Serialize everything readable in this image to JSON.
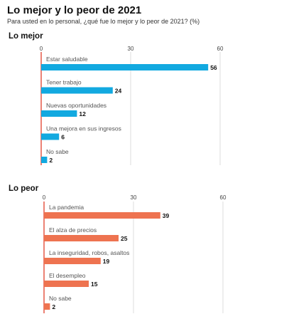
{
  "header": {
    "title": "Lo mejor y lo peor de 2021",
    "subtitle": "Para usted en lo personal, ¿qué fue lo mejor y lo peor de 2021? (%)"
  },
  "colors": {
    "best": "#12a9e0",
    "worst": "#ee7350",
    "axis": "#e44c3a",
    "grid": "#d4d4d4"
  },
  "chart_data": [
    {
      "type": "bar",
      "orientation": "horizontal",
      "title": "Lo mejor",
      "xlim": [
        0,
        60
      ],
      "ticks": [
        "0",
        "30",
        "60"
      ],
      "grid": true,
      "categories": [
        "Estar saludable",
        "Tener trabajo",
        "Nuevas oportunidades",
        "Una mejora en sus ingresos",
        "No sabe"
      ],
      "values": [
        56,
        24,
        12,
        6,
        2
      ],
      "value_labels": [
        "56",
        "24",
        "12",
        "6",
        "2"
      ]
    },
    {
      "type": "bar",
      "orientation": "horizontal",
      "title": "Lo peor",
      "xlim": [
        0,
        60
      ],
      "ticks": [
        "0",
        "30",
        "60"
      ],
      "grid": true,
      "categories": [
        "La pandemia",
        "El alza de precios",
        "La inseguridad, robos, asaltos",
        "El desempleo",
        "No sabe"
      ],
      "values": [
        39,
        25,
        19,
        15,
        2
      ],
      "value_labels": [
        "39",
        "25",
        "19",
        "15",
        "2"
      ]
    }
  ]
}
